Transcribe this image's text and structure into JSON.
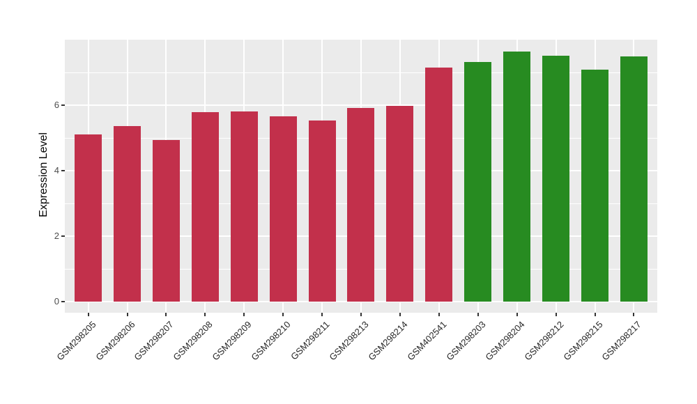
{
  "chart_data": {
    "type": "bar",
    "ylabel": "Expression Level",
    "xlabel": "",
    "categories": [
      "GSM298205",
      "GSM298206",
      "GSM298207",
      "GSM298208",
      "GSM298209",
      "GSM298210",
      "GSM298211",
      "GSM298213",
      "GSM298214",
      "GSM402541",
      "GSM298203",
      "GSM298204",
      "GSM298212",
      "GSM298215",
      "GSM298217"
    ],
    "values": [
      5.11,
      5.37,
      4.93,
      5.78,
      5.8,
      5.66,
      5.53,
      5.92,
      5.97,
      7.16,
      7.31,
      7.64,
      7.52,
      7.09,
      7.48
    ],
    "groups": [
      "red",
      "red",
      "red",
      "red",
      "red",
      "red",
      "red",
      "red",
      "red",
      "red",
      "green",
      "green",
      "green",
      "green",
      "green"
    ],
    "group_colors": {
      "red": "#C2304B",
      "green": "#278B21"
    },
    "ylim": [
      0,
      8
    ],
    "yticks": [
      0,
      2,
      4,
      6
    ],
    "yticks_minor": [
      1,
      3,
      5,
      7
    ],
    "grid": "on",
    "legend_position": "none",
    "panel_bg": "#EBEBEB",
    "grid_color": "#FFFFFF",
    "tick_mark_color": "#333333",
    "axis_text_color": "#4D4D4D",
    "axis_title_color": "#000000",
    "background": "#FFFFFF"
  }
}
